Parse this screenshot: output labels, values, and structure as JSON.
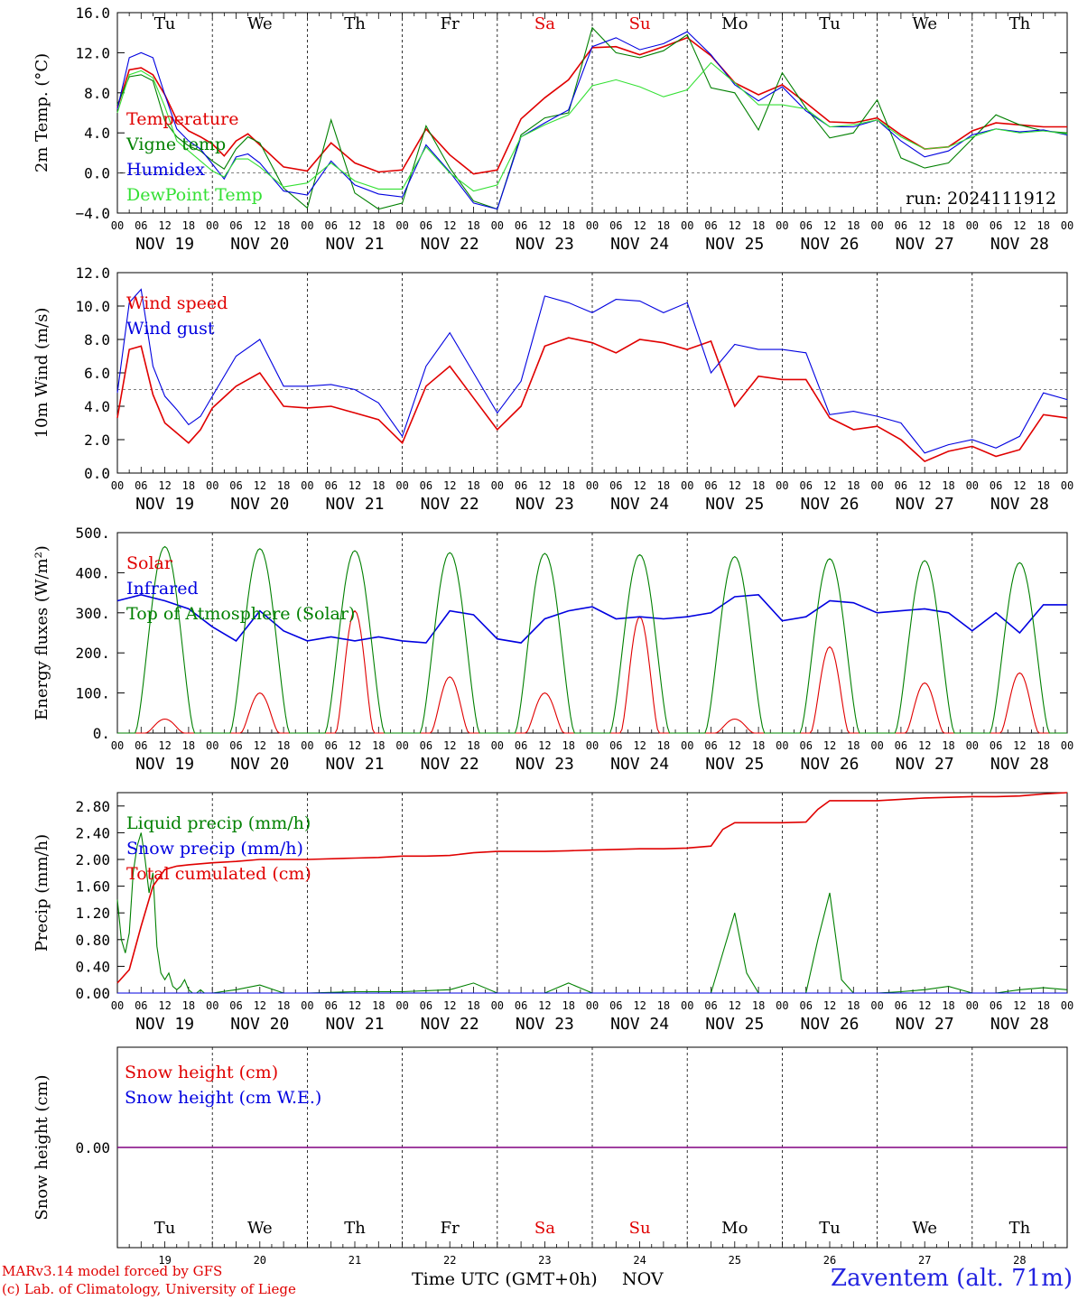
{
  "station": "Zaventem (alt. 71m)",
  "credits": [
    "MARv3.14 model forced by GFS",
    "(c) Lab. of Climatology, University of Liege"
  ],
  "x_axis_title": "Time UTC (GMT+0h)",
  "x_axis_month": "NOV",
  "run_label": "run: 2024111912",
  "colors": {
    "red": "#e00000",
    "green": "#008000",
    "blue": "#0000e0",
    "lightgreen": "#33e033",
    "purple": "#800080",
    "weekend": "#e00000"
  },
  "hour_ticks": [
    "00",
    "06",
    "12",
    "18"
  ],
  "days": [
    {
      "abbr": "Tu",
      "date": "NOV 19",
      "num": "19",
      "weekend": false
    },
    {
      "abbr": "We",
      "date": "NOV 20",
      "num": "20",
      "weekend": false
    },
    {
      "abbr": "Th",
      "date": "NOV 21",
      "num": "21",
      "weekend": false
    },
    {
      "abbr": "Fr",
      "date": "NOV 22",
      "num": "22",
      "weekend": false
    },
    {
      "abbr": "Sa",
      "date": "NOV 23",
      "num": "23",
      "weekend": true
    },
    {
      "abbr": "Su",
      "date": "NOV 24",
      "num": "24",
      "weekend": true
    },
    {
      "abbr": "Mo",
      "date": "NOV 25",
      "num": "25",
      "weekend": false
    },
    {
      "abbr": "Tu",
      "date": "NOV 26",
      "num": "26",
      "weekend": false
    },
    {
      "abbr": "We",
      "date": "NOV 27",
      "num": "27",
      "weekend": false
    },
    {
      "abbr": "Th",
      "date": "NOV 28",
      "num": "28",
      "weekend": false
    }
  ],
  "chart_data": [
    {
      "type": "line",
      "ylabel": "2m Temp. (°C)",
      "ylim": [
        -4,
        16
      ],
      "yticks": [
        "-4.0",
        "0.0",
        "4.0",
        "8.0",
        "12.0",
        "16.0"
      ],
      "ref_line": 0,
      "x_unit": "hours since 2024-11-19 00 UTC",
      "series": [
        {
          "name": "Temperature",
          "color": "#e00000",
          "x": [
            0,
            3,
            6,
            9,
            12,
            15,
            18,
            21,
            24,
            27,
            30,
            33,
            36,
            42,
            48,
            54,
            60,
            66,
            72,
            78,
            84,
            90,
            96,
            102,
            108,
            114,
            120,
            126,
            132,
            138,
            144,
            150,
            156,
            162,
            168,
            174,
            180,
            186,
            192,
            198,
            204,
            210,
            216,
            222,
            228,
            234,
            240
          ],
          "y": [
            6.5,
            10.3,
            10.5,
            9.8,
            7.8,
            5.3,
            4.2,
            3.6,
            2.9,
            1.7,
            3.2,
            3.9,
            2.8,
            0.6,
            0.2,
            3.0,
            1.0,
            0.1,
            0.3,
            4.4,
            1.8,
            -0.1,
            0.3,
            5.4,
            7.5,
            9.3,
            12.5,
            12.6,
            11.8,
            12.6,
            13.5,
            11.7,
            9.0,
            7.8,
            8.8,
            7.0,
            5.1,
            5.0,
            5.5,
            3.8,
            2.4,
            2.6,
            4.2,
            5.0,
            4.8,
            4.6,
            4.6
          ]
        },
        {
          "name": "Vigne temp",
          "color": "#008000",
          "x": [
            0,
            3,
            6,
            9,
            12,
            15,
            18,
            21,
            24,
            27,
            30,
            33,
            36,
            42,
            48,
            54,
            60,
            66,
            72,
            78,
            84,
            90,
            96,
            102,
            108,
            114,
            120,
            126,
            132,
            138,
            144,
            150,
            156,
            162,
            168,
            174,
            180,
            186,
            192,
            198,
            204,
            210,
            216,
            222,
            228,
            234,
            240
          ],
          "y": [
            6.8,
            9.6,
            9.8,
            9.2,
            5.2,
            3.6,
            2.7,
            2.2,
            1.2,
            0.4,
            2.4,
            3.6,
            3.0,
            -1.5,
            -3.5,
            5.3,
            -2.0,
            -3.6,
            -3.0,
            4.7,
            0.5,
            -2.8,
            -3.6,
            3.8,
            5.5,
            6.0,
            14.5,
            12.0,
            11.5,
            12.2,
            13.8,
            8.5,
            8.0,
            4.3,
            10.0,
            6.5,
            3.5,
            4.0,
            7.3,
            1.5,
            0.5,
            1.0,
            3.4,
            5.8,
            4.8,
            4.2,
            4.0
          ]
        },
        {
          "name": "Humidex",
          "color": "#0000e0",
          "x": [
            0,
            3,
            6,
            9,
            12,
            15,
            18,
            21,
            24,
            27,
            30,
            33,
            36,
            42,
            48,
            54,
            60,
            66,
            72,
            78,
            84,
            90,
            96,
            102,
            108,
            114,
            120,
            126,
            132,
            138,
            144,
            150,
            156,
            162,
            168,
            174,
            180,
            186,
            192,
            198,
            204,
            210,
            216,
            222,
            228,
            234,
            240
          ],
          "y": [
            6.4,
            11.5,
            12.0,
            11.5,
            7.8,
            4.4,
            3.2,
            2.4,
            0.9,
            -0.6,
            1.6,
            1.9,
            1.0,
            -1.8,
            -2.2,
            1.2,
            -1.2,
            -2.1,
            -2.4,
            2.8,
            0.1,
            -3.0,
            -3.6,
            3.6,
            5.0,
            6.3,
            12.6,
            13.5,
            12.3,
            12.9,
            14.1,
            11.8,
            8.8,
            7.2,
            8.6,
            6.2,
            4.6,
            4.6,
            5.3,
            3.2,
            1.6,
            2.2,
            3.8,
            4.4,
            4.1,
            4.3,
            3.8
          ]
        },
        {
          "name": "DewPoint Temp",
          "color": "#33e033",
          "x": [
            0,
            3,
            6,
            9,
            12,
            15,
            18,
            21,
            24,
            27,
            30,
            33,
            36,
            42,
            48,
            54,
            60,
            66,
            72,
            78,
            84,
            90,
            96,
            102,
            108,
            114,
            120,
            126,
            132,
            138,
            144,
            150,
            156,
            162,
            168,
            174,
            180,
            186,
            192,
            198,
            204,
            210,
            216,
            222,
            228,
            234,
            240
          ],
          "y": [
            6.0,
            9.8,
            10.2,
            9.5,
            6.6,
            3.2,
            2.2,
            1.2,
            0.2,
            -0.4,
            1.4,
            1.4,
            0.6,
            -1.4,
            -1.0,
            1.0,
            -0.8,
            -1.6,
            -1.6,
            2.6,
            0.0,
            -1.8,
            -1.2,
            3.6,
            4.8,
            5.8,
            8.7,
            9.3,
            8.6,
            7.6,
            8.3,
            11.0,
            9.0,
            6.8,
            6.8,
            6.4,
            4.6,
            4.8,
            5.3,
            3.6,
            2.4,
            2.6,
            3.6,
            4.4,
            4.0,
            4.2,
            3.9
          ]
        }
      ]
    },
    {
      "type": "line",
      "ylabel": "10m Wind (m/s)",
      "ylim": [
        0,
        12
      ],
      "yticks": [
        "0.0",
        "2.0",
        "4.0",
        "6.0",
        "8.0",
        "10.0",
        "12.0"
      ],
      "ref_line": 5,
      "x_unit": "hours since 2024-11-19 00 UTC",
      "series": [
        {
          "name": "Wind speed",
          "color": "#e00000",
          "x": [
            0,
            3,
            6,
            9,
            12,
            15,
            18,
            21,
            24,
            30,
            36,
            42,
            48,
            54,
            60,
            66,
            72,
            78,
            84,
            90,
            96,
            102,
            108,
            114,
            120,
            126,
            132,
            138,
            144,
            150,
            156,
            162,
            168,
            174,
            180,
            186,
            192,
            198,
            204,
            210,
            216,
            222,
            228,
            234,
            240
          ],
          "y": [
            3.3,
            7.4,
            7.6,
            4.7,
            3.0,
            2.4,
            1.8,
            2.6,
            3.9,
            5.2,
            6.0,
            4.0,
            3.9,
            4.0,
            3.6,
            3.2,
            1.8,
            5.2,
            6.4,
            4.5,
            2.6,
            4.0,
            7.6,
            8.1,
            7.8,
            7.2,
            8.0,
            7.8,
            7.4,
            7.9,
            4.0,
            5.8,
            5.6,
            5.6,
            3.3,
            2.6,
            2.8,
            2.0,
            0.7,
            1.3,
            1.6,
            1.0,
            1.4,
            3.5,
            3.3
          ]
        },
        {
          "name": "Wind gust",
          "color": "#0000e0",
          "x": [
            0,
            3,
            6,
            9,
            12,
            15,
            18,
            21,
            24,
            30,
            36,
            42,
            48,
            54,
            60,
            66,
            72,
            78,
            84,
            90,
            96,
            102,
            108,
            114,
            120,
            126,
            132,
            138,
            144,
            150,
            156,
            162,
            168,
            174,
            180,
            186,
            192,
            198,
            204,
            210,
            216,
            222,
            228,
            234,
            240
          ],
          "y": [
            4.8,
            10.2,
            11.0,
            6.4,
            4.6,
            3.8,
            2.9,
            3.4,
            4.6,
            7.0,
            8.0,
            5.2,
            5.2,
            5.3,
            5.0,
            4.2,
            2.2,
            6.4,
            8.4,
            6.0,
            3.6,
            5.5,
            10.6,
            10.2,
            9.6,
            10.4,
            10.3,
            9.6,
            10.2,
            6.0,
            7.7,
            7.4,
            7.4,
            7.2,
            3.5,
            3.7,
            3.4,
            3.0,
            1.2,
            1.7,
            2.0,
            1.5,
            2.2,
            4.8,
            4.4
          ]
        }
      ]
    },
    {
      "type": "line",
      "ylabel": "Energy fluxes (W/m²)",
      "ylim": [
        0,
        500
      ],
      "yticks": [
        "0.",
        "100.",
        "200.",
        "300.",
        "400.",
        "500."
      ],
      "x_unit": "hours since 2024-11-19 00 UTC",
      "series": [
        {
          "name": "Solar",
          "color": "#e00000",
          "peak_hour": 12,
          "day_peaks": [
            35,
            100,
            305,
            140,
            100,
            290,
            35,
            215,
            125,
            150
          ]
        },
        {
          "name": "Infrared",
          "color": "#0000e0",
          "x": [
            0,
            6,
            12,
            18,
            24,
            30,
            36,
            42,
            48,
            54,
            60,
            66,
            72,
            78,
            84,
            90,
            96,
            102,
            108,
            114,
            120,
            126,
            132,
            138,
            144,
            150,
            156,
            162,
            168,
            174,
            180,
            186,
            192,
            198,
            204,
            210,
            216,
            222,
            228,
            234,
            240
          ],
          "y": [
            330,
            345,
            330,
            310,
            265,
            230,
            305,
            255,
            230,
            240,
            230,
            240,
            230,
            225,
            305,
            295,
            235,
            225,
            285,
            305,
            315,
            285,
            290,
            285,
            290,
            300,
            340,
            345,
            280,
            290,
            330,
            325,
            300,
            305,
            310,
            300,
            255,
            300,
            250,
            320,
            320
          ]
        },
        {
          "name": "Top of Atmosphere (Solar)",
          "color": "#008000",
          "peak_hour": 12,
          "day_peaks": [
            465,
            460,
            455,
            450,
            448,
            445,
            440,
            435,
            430,
            425
          ]
        }
      ]
    },
    {
      "type": "line",
      "ylabel": "Precip (mm/h)",
      "ylim": [
        0,
        3.0
      ],
      "yticks": [
        "0.00",
        "0.40",
        "0.80",
        "1.20",
        "1.60",
        "2.00",
        "2.40",
        "2.80"
      ],
      "x_unit": "hours since 2024-11-19 00 UTC",
      "series": [
        {
          "name": "Liquid precip (mm/h)",
          "color": "#008000",
          "x": [
            0,
            1,
            2,
            3,
            4,
            5,
            6,
            7,
            8,
            9,
            10,
            11,
            12,
            13,
            14,
            15,
            16,
            17,
            18,
            19,
            20,
            21,
            22,
            23,
            24,
            30,
            36,
            42,
            48,
            60,
            72,
            84,
            90,
            96,
            108,
            114,
            120,
            132,
            144,
            150,
            153,
            156,
            159,
            162,
            165,
            168,
            174,
            177,
            180,
            183,
            186,
            192,
            198,
            204,
            210,
            216,
            222,
            228,
            234,
            240
          ],
          "y": [
            1.4,
            0.8,
            0.6,
            0.9,
            1.8,
            2.2,
            2.4,
            2.0,
            1.5,
            1.8,
            0.7,
            0.3,
            0.2,
            0.3,
            0.1,
            0.05,
            0.1,
            0.2,
            0.05,
            0.0,
            0.0,
            0.05,
            0.0,
            0.0,
            0.0,
            0.05,
            0.12,
            0.0,
            0.0,
            0.02,
            0.02,
            0.05,
            0.15,
            0.0,
            0.0,
            0.15,
            0.0,
            0.0,
            0.0,
            0.0,
            0.6,
            1.2,
            0.3,
            0.0,
            0.0,
            0.0,
            0.0,
            0.8,
            1.5,
            0.2,
            0.0,
            0.0,
            0.02,
            0.05,
            0.1,
            0.0,
            0.0,
            0.05,
            0.08,
            0.05
          ]
        },
        {
          "name": "Snow precip (mm/h)",
          "color": "#0000e0",
          "x": [
            0,
            240
          ],
          "y": [
            0,
            0
          ]
        },
        {
          "name": "Total cumulated (cm)",
          "color": "#e00000",
          "x": [
            0,
            3,
            6,
            9,
            12,
            15,
            18,
            24,
            30,
            36,
            42,
            48,
            60,
            66,
            72,
            78,
            84,
            90,
            96,
            102,
            108,
            114,
            120,
            126,
            132,
            138,
            144,
            150,
            153,
            156,
            162,
            168,
            174,
            177,
            180,
            186,
            192,
            198,
            204,
            210,
            216,
            222,
            228,
            234,
            240
          ],
          "y": [
            0.15,
            0.35,
            1.0,
            1.6,
            1.85,
            1.9,
            1.92,
            1.95,
            1.97,
            2.0,
            2.0,
            2.0,
            2.02,
            2.03,
            2.05,
            2.05,
            2.06,
            2.1,
            2.12,
            2.12,
            2.12,
            2.13,
            2.14,
            2.15,
            2.16,
            2.16,
            2.17,
            2.2,
            2.45,
            2.55,
            2.55,
            2.55,
            2.56,
            2.75,
            2.88,
            2.88,
            2.88,
            2.9,
            2.92,
            2.93,
            2.94,
            2.94,
            2.95,
            2.98,
            3.0
          ]
        }
      ]
    },
    {
      "type": "line",
      "ylabel": "Snow height (cm)",
      "ylim": [
        -1,
        1
      ],
      "yticks": [
        "0.00"
      ],
      "x_unit": "hours since 2024-11-19 00 UTC",
      "series": [
        {
          "name": "Snow height (cm)",
          "color": "#e00000",
          "x": [
            0,
            240
          ],
          "y": [
            0,
            0
          ]
        },
        {
          "name": "Snow height (cm W.E.)",
          "color": "#0000e0",
          "x": [
            0,
            240
          ],
          "y": [
            0,
            0
          ]
        }
      ]
    }
  ]
}
